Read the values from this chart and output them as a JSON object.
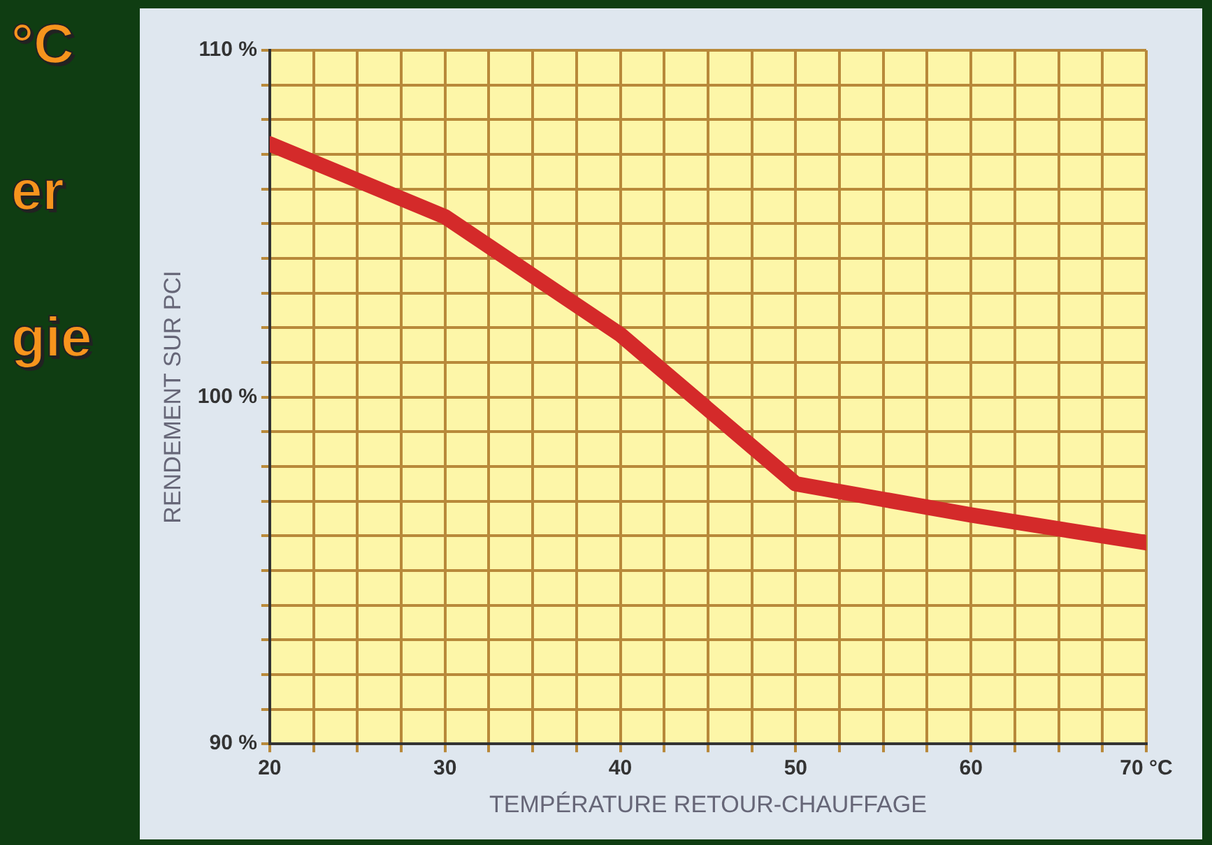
{
  "chart_data": {
    "type": "line",
    "xlabel": "TEMPÉRATURE RETOUR-CHAUFFAGE",
    "ylabel": "RENDEMENT SUR PCI",
    "annotations": [
      "°C",
      "er",
      "gie"
    ],
    "x": [
      20,
      30,
      40,
      50,
      60,
      70
    ],
    "series": [
      {
        "color": "#d42a2a",
        "values": [
          107.3,
          105.2,
          101.8,
          97.5,
          96.6,
          95.8
        ]
      }
    ],
    "xlim": [
      20,
      70
    ],
    "xticks": [
      20,
      {
        "value": 22.5,
        "label": null
      },
      {
        "value": 25,
        "label": null
      },
      {
        "value": 27.5,
        "label": null
      },
      30,
      {
        "value": 32.5,
        "label": null
      },
      {
        "value": 35,
        "label": null
      },
      {
        "value": 37.5,
        "label": null
      },
      40,
      {
        "value": 42.5,
        "label": null
      },
      {
        "value": 45,
        "label": null
      },
      {
        "value": 47.5,
        "label": null
      },
      50,
      {
        "value": 52.5,
        "label": null
      },
      {
        "value": 55,
        "label": null
      },
      {
        "value": 57.5,
        "label": null
      },
      60,
      {
        "value": 62.5,
        "label": null
      },
      {
        "value": 65,
        "label": null
      },
      {
        "value": 67.5,
        "label": null
      },
      {
        "value": 70,
        "label": "70 °C"
      }
    ],
    "ylim": [
      90,
      110
    ],
    "yticks": [
      {
        "value": 90,
        "label": "90 %"
      },
      {
        "value": 91,
        "label": null
      },
      {
        "value": 92,
        "label": null
      },
      {
        "value": 93,
        "label": null
      },
      {
        "value": 94,
        "label": null
      },
      {
        "value": 95,
        "label": null
      },
      {
        "value": 96,
        "label": null
      },
      {
        "value": 97,
        "label": null
      },
      {
        "value": 98,
        "label": null
      },
      {
        "value": 99,
        "label": null
      },
      {
        "value": 100,
        "label": "100 %"
      },
      {
        "value": 101,
        "label": null
      },
      {
        "value": 102,
        "label": null
      },
      {
        "value": 103,
        "label": null
      },
      {
        "value": 104,
        "label": null
      },
      {
        "value": 105,
        "label": null
      },
      {
        "value": 106,
        "label": null
      },
      {
        "value": 107,
        "label": null
      },
      {
        "value": 108,
        "label": null
      },
      {
        "value": 109,
        "label": null
      },
      {
        "value": 110,
        "label": "110 %"
      }
    ],
    "grid": true,
    "marker": "none",
    "line_style": "solid",
    "legend": false
  }
}
